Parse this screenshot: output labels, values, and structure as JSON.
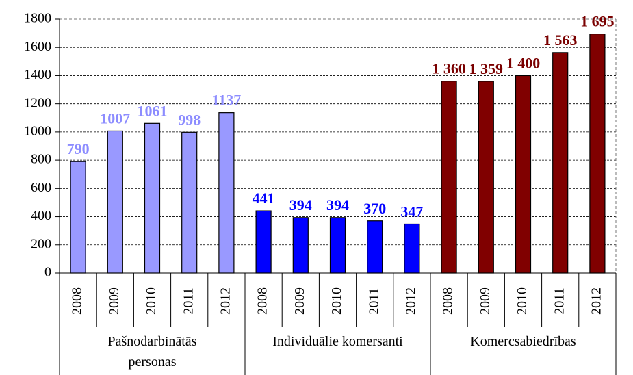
{
  "chart_data": {
    "type": "bar",
    "groups": [
      {
        "name": "Pašnodarbinātās personas",
        "color": "#9999ff",
        "label_color": "#8c8cff",
        "categories": [
          "2008",
          "2009",
          "2010",
          "2011",
          "2012"
        ],
        "values": [
          790,
          1007,
          1061,
          998,
          1137
        ]
      },
      {
        "name": "Individuālie komersanti",
        "color": "#0000ff",
        "label_color": "#0000ff",
        "categories": [
          "2008",
          "2009",
          "2010",
          "2011",
          "2012"
        ],
        "values": [
          441,
          394,
          394,
          370,
          347
        ]
      },
      {
        "name": "Komercsabiedrības",
        "color": "#800000",
        "label_color": "#7a0000",
        "categories": [
          "2008",
          "2009",
          "2010",
          "2011",
          "2012"
        ],
        "values": [
          1360,
          1359,
          1400,
          1563,
          1695
        ],
        "value_labels": [
          "1 360",
          "1 359",
          "1 400",
          "1 563",
          "1 695"
        ]
      }
    ],
    "ylim": [
      0,
      1800
    ],
    "yticks": [
      0,
      200,
      400,
      600,
      800,
      1000,
      1200,
      1400,
      1600,
      1800
    ],
    "grid": true
  }
}
